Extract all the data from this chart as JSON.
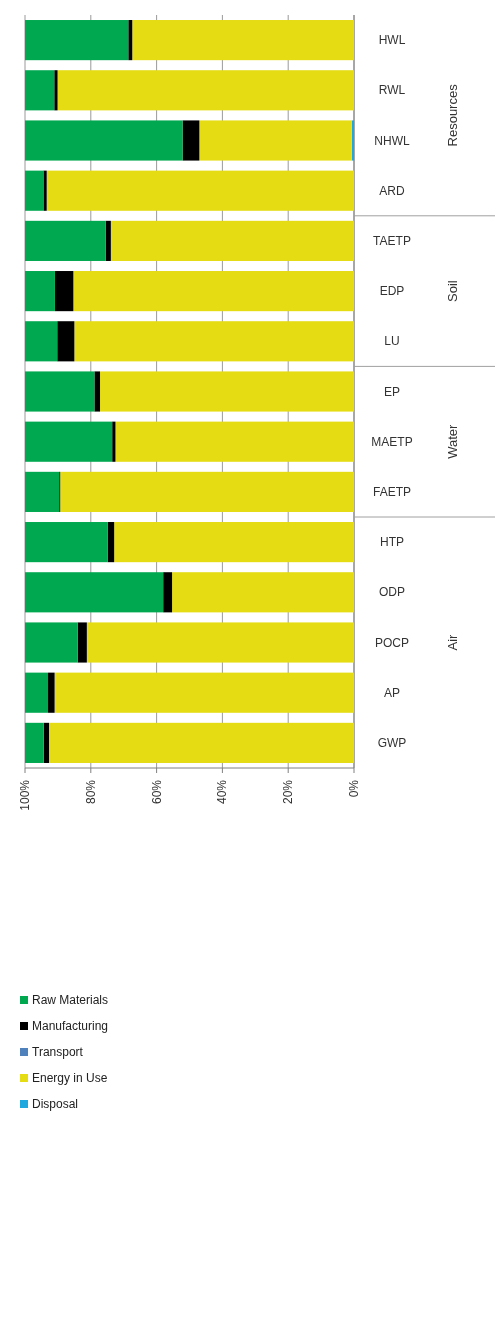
{
  "chart_data": {
    "type": "bar",
    "orientation": "horizontal",
    "stacked": true,
    "categories": [
      "HWL",
      "RWL",
      "NHWL",
      "ARD",
      "TAETP",
      "EDP",
      "LU",
      "EP",
      "MAETP",
      "FAETP",
      "HTP",
      "ODP",
      "POCP",
      "AP",
      "GWP"
    ],
    "series": [
      {
        "name": "Disposal",
        "color": "#1fa7e0",
        "values": [
          0,
          0,
          0.7,
          0,
          0,
          0,
          0,
          0,
          0,
          0,
          0,
          0,
          0,
          0,
          0
        ]
      },
      {
        "name": "Energy in Use",
        "color": "#e5dc14",
        "values": [
          67.4,
          90.1,
          46.3,
          93.4,
          73.9,
          85.3,
          85,
          77.2,
          72.5,
          89.3,
          72.9,
          55.3,
          81.2,
          91,
          92.7
        ]
      },
      {
        "name": "Transport",
        "color": "#4f81bd",
        "values": [
          0,
          0,
          0,
          0,
          0,
          0,
          0,
          0,
          0,
          0,
          0,
          0,
          0,
          0,
          0
        ]
      },
      {
        "name": "Manufacturing",
        "color": "#000000",
        "values": [
          1.2,
          1,
          5.1,
          1,
          1.6,
          5.6,
          5.2,
          1.7,
          1,
          0.3,
          2,
          2.7,
          2.8,
          2,
          1.6
        ]
      },
      {
        "name": "Raw Materials",
        "color": "#00a84f",
        "values": [
          31.4,
          8.9,
          47.9,
          5.6,
          24.5,
          9.1,
          9.8,
          21.1,
          26.5,
          10.4,
          25.1,
          42,
          16,
          7,
          5.7
        ]
      }
    ],
    "xlim": [
      100,
      0
    ],
    "xticks": [
      {
        "value": 100,
        "label": "100%"
      },
      {
        "value": 80,
        "label": "80%"
      },
      {
        "value": 60,
        "label": "60%"
      },
      {
        "value": 40,
        "label": "40%"
      },
      {
        "value": 20,
        "label": "20%"
      },
      {
        "value": 0,
        "label": "0%"
      }
    ],
    "grid": "x",
    "legend": "bottom",
    "annotations": [
      "Resources",
      "Soil",
      "Water",
      "Air"
    ]
  }
}
